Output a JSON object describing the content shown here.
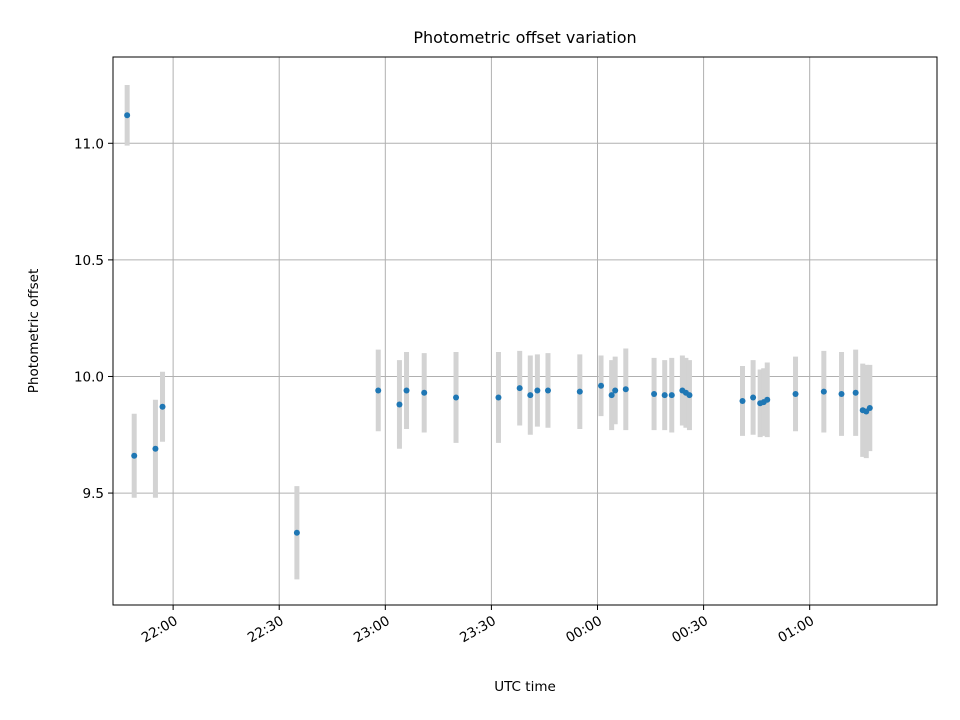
{
  "chart_data": {
    "type": "scatter",
    "title": "Photometric offset variation",
    "xlabel": "UTC time",
    "ylabel": "Photometric offset",
    "x_unit": "UTC time (HH:MM)",
    "xlim": [
      "21:43",
      "01:36"
    ],
    "ylim": [
      9.02,
      11.37
    ],
    "grid": true,
    "x_ticks": [
      "22:00",
      "22:30",
      "23:00",
      "23:30",
      "00:00",
      "00:30",
      "01:00"
    ],
    "y_ticks": [
      "9.5",
      "10.0",
      "10.5",
      "11.0"
    ],
    "y_tick_values": [
      9.5,
      10.0,
      10.5,
      11.0
    ],
    "point_color": "#1f77b4",
    "errorbar_color": "#d3d3d3",
    "series": [
      {
        "x": [
          "21:47",
          "21:49",
          "21:55",
          "21:57",
          "22:35",
          "22:58",
          "23:04",
          "23:06",
          "23:11",
          "23:20",
          "23:32",
          "23:38",
          "23:41",
          "23:43",
          "23:46",
          "23:55",
          "24:01",
          "24:04",
          "24:05",
          "24:08",
          "24:16",
          "24:19",
          "24:21",
          "24:24",
          "24:25",
          "24:26",
          "24:41",
          "24:44",
          "24:46",
          "24:47",
          "24:48",
          "24:56",
          "25:04",
          "25:09",
          "25:13",
          "25:15",
          "25:16",
          "25:17"
        ],
        "y": [
          11.12,
          9.66,
          9.69,
          9.87,
          9.33,
          9.94,
          9.88,
          9.94,
          9.93,
          9.91,
          9.91,
          9.95,
          9.92,
          9.94,
          9.94,
          9.935,
          9.96,
          9.92,
          9.94,
          9.945,
          9.925,
          9.92,
          9.92,
          9.94,
          9.93,
          9.92,
          9.895,
          9.91,
          9.885,
          9.89,
          9.9,
          9.925,
          9.935,
          9.925,
          9.93,
          9.855,
          9.85,
          9.865
        ],
        "err": [
          0.13,
          0.18,
          0.21,
          0.15,
          0.2,
          0.175,
          0.19,
          0.165,
          0.17,
          0.195,
          0.195,
          0.16,
          0.17,
          0.155,
          0.16,
          0.16,
          0.13,
          0.15,
          0.145,
          0.175,
          0.155,
          0.15,
          0.16,
          0.15,
          0.15,
          0.15,
          0.15,
          0.16,
          0.145,
          0.145,
          0.16,
          0.16,
          0.175,
          0.18,
          0.185,
          0.2,
          0.2,
          0.185
        ]
      }
    ]
  }
}
